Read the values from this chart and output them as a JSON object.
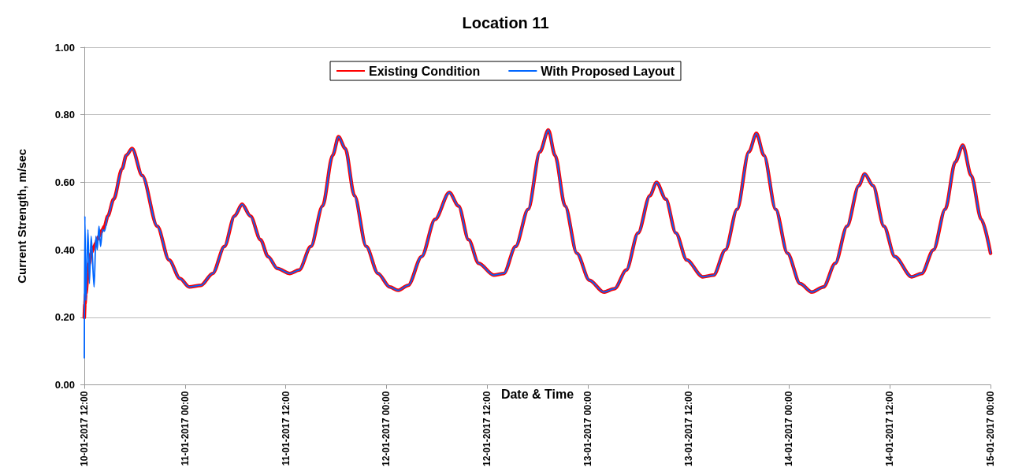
{
  "chart_data": {
    "type": "line",
    "title": "Location 11",
    "xlabel": "Date & Time",
    "ylabel": "Current Strength, m/sec",
    "x": [
      "2017-01-10T12:00",
      "2017-01-10T12:04",
      "2017-01-10T12:11",
      "2017-01-10T12:26",
      "2017-01-10T12:36",
      "2017-01-10T12:49",
      "2017-01-10T13:10",
      "2017-01-10T13:23",
      "2017-01-10T13:32",
      "2017-01-10T13:45",
      "2017-01-10T13:56",
      "2017-01-10T14:10",
      "2017-01-10T14:24",
      "2017-01-10T14:48",
      "2017-01-10T15:30",
      "2017-01-10T16:30",
      "2017-01-10T17:00",
      "2017-01-10T17:42",
      "2017-01-10T18:54",
      "2017-01-10T20:42",
      "2017-01-10T22:06",
      "2017-01-10T23:24",
      "2017-01-11T00:30",
      "2017-01-11T01:54",
      "2017-01-11T03:18",
      "2017-01-11T04:42",
      "2017-01-11T05:54",
      "2017-01-11T06:48",
      "2017-01-11T07:48",
      "2017-01-11T09:00",
      "2017-01-11T09:54",
      "2017-01-11T11:00",
      "2017-01-11T12:30",
      "2017-01-11T13:36",
      "2017-01-11T15:00",
      "2017-01-11T16:24",
      "2017-01-11T17:36",
      "2017-01-11T18:18",
      "2017-01-11T19:06",
      "2017-01-11T20:12",
      "2017-01-11T21:36",
      "2017-01-11T23:00",
      "2017-01-12T00:24",
      "2017-01-12T01:24",
      "2017-01-12T02:36",
      "2017-01-12T04:12",
      "2017-01-12T05:48",
      "2017-01-12T07:30",
      "2017-01-12T08:36",
      "2017-01-12T09:48",
      "2017-01-12T11:00",
      "2017-01-12T12:48",
      "2017-01-12T14:00",
      "2017-01-12T15:24",
      "2017-01-12T16:54",
      "2017-01-12T18:18",
      "2017-01-12T19:18",
      "2017-01-12T20:06",
      "2017-01-12T21:18",
      "2017-01-12T22:42",
      "2017-01-13T00:12",
      "2017-01-13T01:54",
      "2017-01-13T03:12",
      "2017-01-13T04:36",
      "2017-01-13T06:00",
      "2017-01-13T07:24",
      "2017-01-13T08:12",
      "2017-01-13T09:18",
      "2017-01-13T10:30",
      "2017-01-13T11:48",
      "2017-01-13T13:42",
      "2017-01-13T15:00",
      "2017-01-13T16:24",
      "2017-01-13T17:48",
      "2017-01-13T19:12",
      "2017-01-13T20:06",
      "2017-01-13T21:00",
      "2017-01-13T22:24",
      "2017-01-13T23:48",
      "2017-01-14T01:18",
      "2017-01-14T02:42",
      "2017-01-14T04:06",
      "2017-01-14T05:30",
      "2017-01-14T06:54",
      "2017-01-14T08:18",
      "2017-01-14T09:00",
      "2017-01-14T10:00",
      "2017-01-14T11:18",
      "2017-01-14T12:36",
      "2017-01-14T14:36",
      "2017-01-14T15:48",
      "2017-01-14T17:12",
      "2017-01-14T18:36",
      "2017-01-14T19:48",
      "2017-01-14T20:42",
      "2017-01-14T21:42",
      "2017-01-14T22:54",
      "2017-01-15T00:00"
    ],
    "series": [
      {
        "name": "Existing Condition",
        "color": "#ff0000",
        "values": [
          0.2,
          0.24,
          0.27,
          0.33,
          0.36,
          0.39,
          0.41,
          0.42,
          0.43,
          0.44,
          0.45,
          0.46,
          0.47,
          0.5,
          0.55,
          0.64,
          0.68,
          0.7,
          0.62,
          0.47,
          0.37,
          0.315,
          0.29,
          0.295,
          0.33,
          0.41,
          0.5,
          0.535,
          0.5,
          0.43,
          0.38,
          0.345,
          0.33,
          0.34,
          0.41,
          0.53,
          0.68,
          0.735,
          0.7,
          0.56,
          0.41,
          0.33,
          0.29,
          0.28,
          0.295,
          0.38,
          0.49,
          0.57,
          0.53,
          0.43,
          0.36,
          0.325,
          0.33,
          0.41,
          0.52,
          0.69,
          0.755,
          0.68,
          0.53,
          0.39,
          0.31,
          0.275,
          0.285,
          0.34,
          0.45,
          0.56,
          0.6,
          0.55,
          0.45,
          0.37,
          0.32,
          0.325,
          0.4,
          0.52,
          0.69,
          0.745,
          0.68,
          0.52,
          0.39,
          0.3,
          0.275,
          0.29,
          0.36,
          0.47,
          0.59,
          0.625,
          0.59,
          0.47,
          0.38,
          0.32,
          0.33,
          0.4,
          0.52,
          0.66,
          0.71,
          0.62,
          0.49,
          0.39
        ]
      },
      {
        "name": "With Proposed Layout",
        "color": "#0066ff",
        "values": [
          0.08,
          0.5,
          0.25,
          0.46,
          0.3,
          0.44,
          0.29,
          0.44,
          0.4,
          0.47,
          0.41,
          0.46,
          0.455,
          0.5,
          0.55,
          0.64,
          0.68,
          0.7,
          0.62,
          0.47,
          0.37,
          0.315,
          0.29,
          0.295,
          0.33,
          0.41,
          0.5,
          0.535,
          0.5,
          0.43,
          0.38,
          0.345,
          0.33,
          0.34,
          0.41,
          0.53,
          0.68,
          0.735,
          0.7,
          0.56,
          0.41,
          0.33,
          0.29,
          0.28,
          0.295,
          0.38,
          0.49,
          0.57,
          0.53,
          0.43,
          0.36,
          0.325,
          0.33,
          0.41,
          0.52,
          0.69,
          0.755,
          0.68,
          0.53,
          0.39,
          0.31,
          0.275,
          0.285,
          0.34,
          0.45,
          0.56,
          0.6,
          0.55,
          0.45,
          0.37,
          0.32,
          0.325,
          0.4,
          0.52,
          0.69,
          0.745,
          0.68,
          0.52,
          0.39,
          0.3,
          0.275,
          0.29,
          0.36,
          0.47,
          0.59,
          0.625,
          0.59,
          0.47,
          0.38,
          0.32,
          0.33,
          0.4,
          0.52,
          0.66,
          0.71,
          0.62,
          0.49,
          0.39
        ]
      }
    ],
    "xlim": [
      "2017-01-10T12:00",
      "2017-01-15T00:00"
    ],
    "xticks": [
      {
        "value": "2017-01-10T12:00",
        "label": "10-01-2017 12:00"
      },
      {
        "value": "2017-01-11T00:00",
        "label": "11-01-2017 00:00"
      },
      {
        "value": "2017-01-11T12:00",
        "label": "11-01-2017 12:00"
      },
      {
        "value": "2017-01-12T00:00",
        "label": "12-01-2017 00:00"
      },
      {
        "value": "2017-01-12T12:00",
        "label": "12-01-2017 12:00"
      },
      {
        "value": "2017-01-13T00:00",
        "label": "13-01-2017 00:00"
      },
      {
        "value": "2017-01-13T12:00",
        "label": "13-01-2017 12:00"
      },
      {
        "value": "2017-01-14T00:00",
        "label": "14-01-2017 00:00"
      },
      {
        "value": "2017-01-14T12:00",
        "label": "14-01-2017 12:00"
      },
      {
        "value": "2017-01-15T00:00",
        "label": "15-01-2017 00:00"
      }
    ],
    "ylim": [
      0,
      1
    ],
    "yticks": [
      {
        "value": 0,
        "label": "0.00"
      },
      {
        "value": 0.2,
        "label": "0.20"
      },
      {
        "value": 0.4,
        "label": "0.40"
      },
      {
        "value": 0.6,
        "label": "0.60"
      },
      {
        "value": 0.8,
        "label": "0.80"
      },
      {
        "value": 1,
        "label": "1.00"
      }
    ],
    "grid": "y",
    "legend": "top",
    "marker": "none",
    "line_style": "solid"
  }
}
